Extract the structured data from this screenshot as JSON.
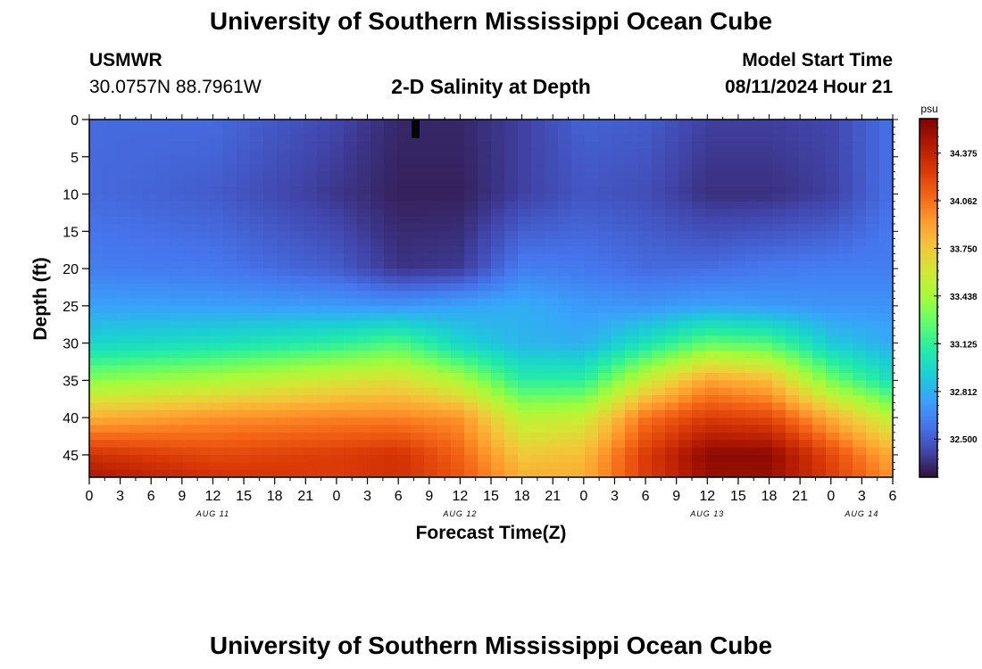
{
  "header": {
    "title": "University of Southern Mississippi Ocean Cube",
    "station": "USMWR",
    "coordinates": "30.0757N  88.7961W",
    "subtitle": "2-D Salinity at Depth",
    "model_start_label": "Model Start Time",
    "model_start_value": "08/11/2024 Hour 21"
  },
  "footer": {
    "title": "University of Southern Mississippi Ocean Cube"
  },
  "chart_data": {
    "type": "heatmap",
    "title": "2-D Salinity at Depth",
    "xlabel": "Forecast Time(Z)",
    "ylabel": "Depth (ft)",
    "x_tick_labels": [
      "0",
      "3",
      "6",
      "9",
      "12",
      "15",
      "18",
      "21",
      "0",
      "3",
      "6",
      "9",
      "12",
      "15",
      "18",
      "21",
      "0",
      "3",
      "6",
      "9",
      "12",
      "15",
      "18",
      "21",
      "0",
      "3",
      "6"
    ],
    "date_labels": [
      {
        "label": "AUG 11",
        "tick_index": 4
      },
      {
        "label": "AUG 12",
        "tick_index": 12
      },
      {
        "label": "AUG 13",
        "tick_index": 20
      },
      {
        "label": "AUG 14",
        "tick_index": 25
      }
    ],
    "x_hours_range": [
      0,
      78
    ],
    "y_tick_labels": [
      "0",
      "5",
      "10",
      "15",
      "20",
      "25",
      "30",
      "35",
      "40",
      "45"
    ],
    "ylim": [
      0,
      48
    ],
    "y_inverted": true,
    "colorbar": {
      "unit": "psu",
      "ticks": [
        "34.375",
        "34.062",
        "33.750",
        "33.438",
        "33.125",
        "32.812",
        "32.500"
      ],
      "range": [
        32.25,
        34.6
      ],
      "colors": [
        "#30123b",
        "#4145ab",
        "#4675ed",
        "#39a2fc",
        "#1bcfd4",
        "#24eca6",
        "#61fc6c",
        "#a4fc3b",
        "#d1e834",
        "#f3c63a",
        "#fe9b2d",
        "#f36315",
        "#d93806",
        "#b11901",
        "#7a0403"
      ]
    },
    "salinity_profile": {
      "note": "approximate salinity (psu) read from colors",
      "depths_ft": [
        0,
        10,
        20,
        25,
        30,
        35,
        40,
        45,
        48
      ],
      "time_hours": [
        0,
        12,
        24,
        30,
        36,
        42,
        48,
        54,
        60,
        66,
        72,
        78
      ],
      "values": [
        [
          32.55,
          32.55,
          32.42,
          32.32,
          32.32,
          32.4,
          32.52,
          32.5,
          32.4,
          32.4,
          32.42,
          32.58
        ],
        [
          32.55,
          32.5,
          32.37,
          32.3,
          32.3,
          32.4,
          32.48,
          32.45,
          32.35,
          32.35,
          32.4,
          32.58
        ],
        [
          32.62,
          32.6,
          32.5,
          32.36,
          32.38,
          32.62,
          32.6,
          32.55,
          32.56,
          32.6,
          32.62,
          32.62
        ],
        [
          32.75,
          32.74,
          32.72,
          32.7,
          32.75,
          32.8,
          32.72,
          32.7,
          32.75,
          32.72,
          32.7,
          32.7
        ],
        [
          32.95,
          33.0,
          33.1,
          33.2,
          32.95,
          32.82,
          32.8,
          33.02,
          33.25,
          33.2,
          32.9,
          32.78
        ],
        [
          33.35,
          33.45,
          33.6,
          33.65,
          33.45,
          33.1,
          33.1,
          33.55,
          33.9,
          33.8,
          33.3,
          33.0
        ],
        [
          33.85,
          33.95,
          34.0,
          34.0,
          33.95,
          33.5,
          33.55,
          34.05,
          34.25,
          34.2,
          33.85,
          33.5
        ],
        [
          34.3,
          34.2,
          34.25,
          34.3,
          34.1,
          33.75,
          33.8,
          34.25,
          34.55,
          34.55,
          34.2,
          33.85
        ],
        [
          34.45,
          34.3,
          34.25,
          34.3,
          34.15,
          33.85,
          33.85,
          34.25,
          34.5,
          34.5,
          34.25,
          33.95
        ]
      ]
    }
  }
}
